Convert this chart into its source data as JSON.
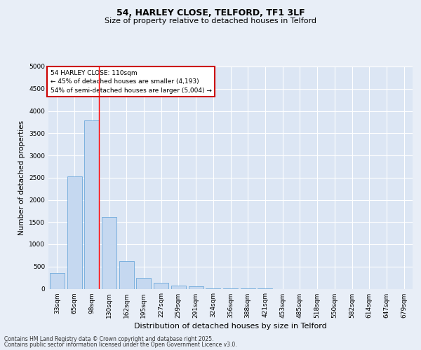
{
  "title1": "54, HARLEY CLOSE, TELFORD, TF1 3LF",
  "title2": "Size of property relative to detached houses in Telford",
  "xlabel": "Distribution of detached houses by size in Telford",
  "ylabel": "Number of detached properties",
  "categories": [
    "33sqm",
    "65sqm",
    "98sqm",
    "130sqm",
    "162sqm",
    "195sqm",
    "227sqm",
    "259sqm",
    "291sqm",
    "324sqm",
    "356sqm",
    "388sqm",
    "421sqm",
    "453sqm",
    "485sqm",
    "518sqm",
    "550sqm",
    "582sqm",
    "614sqm",
    "647sqm",
    "679sqm"
  ],
  "values": [
    350,
    2520,
    3780,
    1620,
    620,
    250,
    130,
    70,
    50,
    10,
    5,
    2,
    1,
    0,
    0,
    0,
    0,
    0,
    0,
    0,
    0
  ],
  "bar_color": "#c5d8f0",
  "bar_edge_color": "#5a9ed6",
  "red_line_x": 2.42,
  "annotation_title": "54 HARLEY CLOSE: 110sqm",
  "annotation_line1": "← 45% of detached houses are smaller (4,193)",
  "annotation_line2": "54% of semi-detached houses are larger (5,004) →",
  "ylim": [
    0,
    5000
  ],
  "yticks": [
    0,
    500,
    1000,
    1500,
    2000,
    2500,
    3000,
    3500,
    4000,
    4500,
    5000
  ],
  "footnote1": "Contains HM Land Registry data © Crown copyright and database right 2025.",
  "footnote2": "Contains public sector information licensed under the Open Government Licence v3.0.",
  "bg_color": "#e8eef7",
  "plot_bg_color": "#dce6f4",
  "grid_color": "#ffffff",
  "title1_fontsize": 9,
  "title2_fontsize": 8,
  "annotation_fontsize": 6.5,
  "tick_fontsize": 6.5,
  "ylabel_fontsize": 7.5,
  "xlabel_fontsize": 8,
  "annotation_box_color": "#ffffff",
  "annotation_border_color": "#cc0000",
  "footnote_fontsize": 5.5
}
